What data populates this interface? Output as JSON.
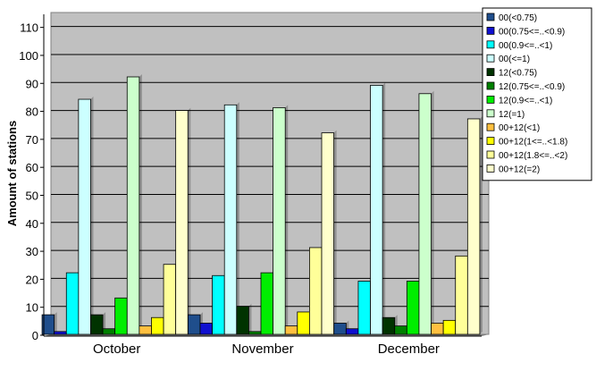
{
  "chart_data": {
    "type": "bar",
    "title": "",
    "xlabel": "",
    "ylabel": "Amount of stations",
    "ylim": [
      0,
      115
    ],
    "yticks": [
      0,
      10,
      20,
      30,
      40,
      50,
      60,
      70,
      80,
      90,
      100,
      110
    ],
    "categories": [
      "October",
      "November",
      "December"
    ],
    "grid": true,
    "legend_position": "right",
    "plot_background": "#C0C0C0",
    "series": [
      {
        "name": "00(<0.75)",
        "color": "#1F4E8C",
        "values": [
          7,
          7,
          4
        ]
      },
      {
        "name": "00(0.75<=..<0.9)",
        "color": "#1010D0",
        "values": [
          1,
          4,
          2
        ]
      },
      {
        "name": "00(0.9<=..<1)",
        "color": "#00FFFF",
        "values": [
          22,
          21,
          19
        ]
      },
      {
        "name": "00(<=1)",
        "color": "#CCFFFF",
        "values": [
          84,
          82,
          89
        ]
      },
      {
        "name": "12(<0.75)",
        "color": "#003300",
        "values": [
          7,
          10,
          6
        ]
      },
      {
        "name": "12(0.75<=..<0.9)",
        "color": "#008000",
        "values": [
          2,
          1,
          3
        ]
      },
      {
        "name": "12(0.9<=..<1)",
        "color": "#00EE00",
        "values": [
          13,
          22,
          19
        ]
      },
      {
        "name": "12(=1)",
        "color": "#CCFFCC",
        "values": [
          92,
          81,
          86
        ]
      },
      {
        "name": "00+12(<1)",
        "color": "#FFC040",
        "values": [
          3,
          3,
          4
        ]
      },
      {
        "name": "00+12(1<=..<1.8)",
        "color": "#FFFF00",
        "values": [
          6,
          8,
          5
        ]
      },
      {
        "name": "00+12(1.8<=..<2)",
        "color": "#FFFF99",
        "values": [
          25,
          31,
          28
        ]
      },
      {
        "name": "00+12(=2)",
        "color": "#FFFFCC",
        "values": [
          80,
          72,
          77
        ]
      }
    ]
  }
}
